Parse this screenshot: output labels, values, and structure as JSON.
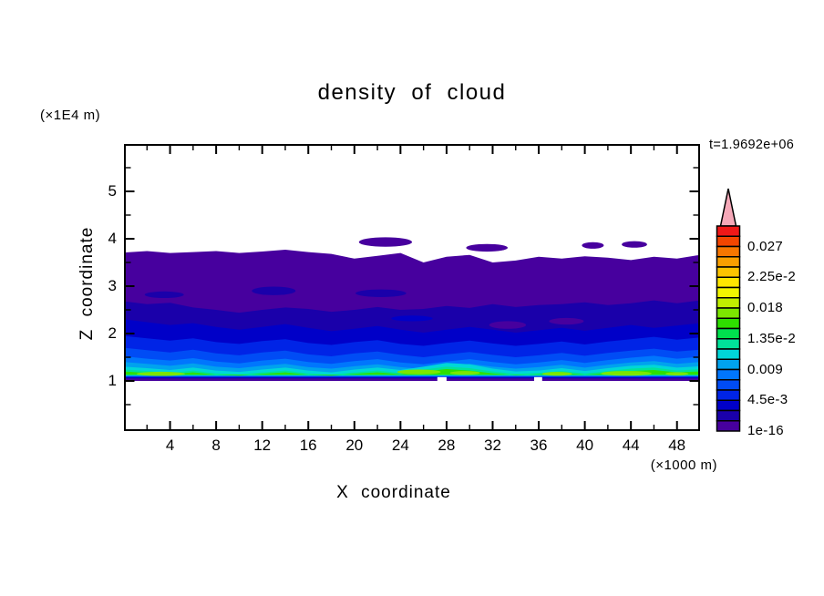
{
  "title": "density of cloud",
  "labels": {
    "time": "t=1.9692e+06",
    "z_unit": "(×1E4 m)",
    "x_unit": "(×1000 m)",
    "x_axis": "X coordinate",
    "z_axis": "Z coordinate"
  },
  "colorbar": {
    "n_segments": 20,
    "value_min": 0,
    "value_max": 0.03,
    "segment_step": 0.0015,
    "overflow_color": "#F5A8B8",
    "frame_color": "#000000",
    "colors_bottom_to_top": [
      "#47009E",
      "#1A00AA",
      "#0000C8",
      "#0024E6",
      "#004CF5",
      "#0076FD",
      "#00A2EE",
      "#00D6D8",
      "#00E29A",
      "#00E14E",
      "#2FDE00",
      "#7DE600",
      "#C0EE00",
      "#F2F500",
      "#FFE600",
      "#FCC300",
      "#F99F00",
      "#F67600",
      "#F34500",
      "#F01818"
    ],
    "labels": [
      {
        "text": "1e-16",
        "boundary_index": 0
      },
      {
        "text": "4.5e-3",
        "boundary_index": 3
      },
      {
        "text": "0.009",
        "boundary_index": 6
      },
      {
        "text": "1.35e-2",
        "boundary_index": 9
      },
      {
        "text": "0.018",
        "boundary_index": 12
      },
      {
        "text": "2.25e-2",
        "boundary_index": 15
      },
      {
        "text": "0.027",
        "boundary_index": 18
      }
    ]
  },
  "chart_data": {
    "type": "heatmap",
    "subtype": "filled-contour",
    "title": "density of cloud",
    "xlabel": "X coordinate",
    "ylabel": "Z coordinate",
    "x_unit": "×1000 m",
    "z_unit": "×1E4 m",
    "time_annotation": "t=1.9692e+06",
    "xlim": [
      0,
      50
    ],
    "zlim": [
      0,
      6.05
    ],
    "x_major_ticks": [
      4,
      8,
      12,
      16,
      20,
      24,
      28,
      32,
      36,
      40,
      44,
      48
    ],
    "x_minor_ticks": [
      2,
      6,
      10,
      14,
      18,
      22,
      26,
      30,
      34,
      38,
      42,
      46
    ],
    "z_major_ticks": [
      1,
      2,
      3,
      4,
      5
    ],
    "z_minor_ticks": [
      0.5,
      1.5,
      2.5,
      3.5,
      4.5,
      5.5
    ],
    "grid": false,
    "legend_position": "right-colorbar",
    "x_step_of_band_points": 2,
    "bands": [
      {
        "name": "band-1e-16",
        "level": 0,
        "bottom": 1.0,
        "z_top": [
          3.71,
          3.74,
          3.7,
          3.72,
          3.74,
          3.7,
          3.73,
          3.77,
          3.72,
          3.68,
          3.58,
          3.64,
          3.7,
          3.5,
          3.62,
          3.66,
          3.5,
          3.54,
          3.62,
          3.58,
          3.63,
          3.6,
          3.55,
          3.62,
          3.58,
          3.66
        ]
      },
      {
        "name": "band-1.5e-3",
        "level": 1,
        "bottom": 1.05,
        "z_top": [
          2.68,
          2.62,
          2.65,
          2.55,
          2.5,
          2.44,
          2.5,
          2.55,
          2.52,
          2.46,
          2.5,
          2.56,
          2.5,
          2.52,
          2.58,
          2.54,
          2.62,
          2.56,
          2.6,
          2.62,
          2.66,
          2.6,
          2.64,
          2.7,
          2.64,
          2.7
        ]
      },
      {
        "name": "band-3e-3",
        "level": 2,
        "bottom": 1.065,
        "z_top": [
          2.3,
          2.24,
          2.18,
          2.22,
          2.14,
          2.08,
          2.14,
          2.2,
          2.12,
          2.05,
          2.1,
          2.16,
          2.08,
          2.02,
          2.08,
          2.14,
          2.08,
          2.02,
          2.07,
          2.12,
          2.06,
          2.12,
          2.18,
          2.12,
          2.17,
          2.22
        ]
      },
      {
        "name": "band-4.5e-3",
        "level": 3,
        "bottom": 1.078,
        "z_top": [
          1.95,
          1.9,
          1.85,
          1.9,
          1.82,
          1.78,
          1.84,
          1.88,
          1.8,
          1.76,
          1.82,
          1.86,
          1.78,
          1.74,
          1.8,
          1.85,
          1.79,
          1.74,
          1.78,
          1.83,
          1.77,
          1.83,
          1.88,
          1.93,
          1.87,
          1.92
        ]
      },
      {
        "name": "band-6e-3",
        "level": 4,
        "bottom": 1.088,
        "z_top": [
          1.7,
          1.65,
          1.6,
          1.66,
          1.58,
          1.54,
          1.6,
          1.64,
          1.56,
          1.52,
          1.58,
          1.62,
          1.55,
          1.5,
          1.56,
          1.61,
          1.55,
          1.5,
          1.54,
          1.59,
          1.53,
          1.59,
          1.64,
          1.68,
          1.62,
          1.66
        ]
      },
      {
        "name": "band-7.5e-3",
        "level": 5,
        "bottom": 1.098,
        "z_top": [
          1.52,
          1.47,
          1.43,
          1.48,
          1.41,
          1.37,
          1.43,
          1.47,
          1.4,
          1.36,
          1.42,
          1.46,
          1.39,
          1.35,
          1.41,
          1.46,
          1.4,
          1.35,
          1.39,
          1.44,
          1.38,
          1.44,
          1.49,
          1.53,
          1.47,
          1.51
        ]
      },
      {
        "name": "band-9e-3",
        "level": 6,
        "bottom": 1.106,
        "z_top": [
          1.4,
          1.36,
          1.32,
          1.37,
          1.3,
          1.27,
          1.32,
          1.36,
          1.29,
          1.26,
          1.31,
          1.35,
          1.29,
          1.25,
          1.31,
          1.36,
          1.3,
          1.26,
          1.29,
          1.34,
          1.28,
          1.34,
          1.39,
          1.42,
          1.36,
          1.4
        ]
      },
      {
        "name": "band-1.05e-2",
        "level": 7,
        "bottom": 1.114,
        "z_top": [
          1.3,
          1.27,
          1.23,
          1.28,
          1.22,
          1.19,
          1.24,
          1.28,
          1.22,
          1.18,
          1.24,
          1.28,
          1.23,
          1.3,
          1.38,
          1.35,
          1.26,
          1.2,
          1.22,
          1.27,
          1.21,
          1.27,
          1.32,
          1.34,
          1.28,
          1.31
        ]
      },
      {
        "name": "band-1.2e-2",
        "level": 8,
        "bottom": 1.122,
        "z_top": [
          1.24,
          1.21,
          1.17,
          1.22,
          1.16,
          1.14,
          1.18,
          1.22,
          1.16,
          1.13,
          1.18,
          1.22,
          1.17,
          1.24,
          1.3,
          1.27,
          1.2,
          1.15,
          1.17,
          1.21,
          1.16,
          1.21,
          1.26,
          1.28,
          1.22,
          1.25
        ]
      },
      {
        "name": "band-1.35e-2",
        "level": 10,
        "bottom": 1.13,
        "z_top": [
          1.2,
          1.17,
          1.14,
          1.18,
          1.13,
          1.11,
          1.15,
          1.18,
          1.13,
          1.11,
          1.15,
          1.18,
          1.14,
          1.2,
          1.25,
          1.22,
          1.16,
          1.12,
          1.14,
          1.17,
          1.13,
          1.17,
          1.21,
          1.23,
          1.18,
          1.2
        ]
      }
    ],
    "islands": [
      {
        "name": "cloud-island",
        "level": 0,
        "ellipse": [
          22.7,
          3.93,
          2.3,
          0.1
        ]
      },
      {
        "name": "cloud-island",
        "level": 0,
        "ellipse": [
          31.5,
          3.81,
          1.8,
          0.08
        ]
      },
      {
        "name": "cloud-island",
        "level": 0,
        "ellipse": [
          40.7,
          3.86,
          0.95,
          0.07
        ]
      },
      {
        "name": "cloud-island",
        "level": 0,
        "ellipse": [
          44.3,
          3.88,
          1.1,
          0.07
        ]
      }
    ],
    "patches": [
      {
        "name": "inner-patch",
        "level": 1,
        "ellipse": [
          3.5,
          2.82,
          1.7,
          0.07
        ]
      },
      {
        "name": "inner-patch",
        "level": 1,
        "ellipse": [
          13.0,
          2.9,
          1.9,
          0.09
        ]
      },
      {
        "name": "inner-patch",
        "level": 1,
        "ellipse": [
          22.3,
          2.85,
          2.2,
          0.08
        ]
      },
      {
        "name": "inner-patch",
        "level": 0,
        "ellipse": [
          33.3,
          2.18,
          1.6,
          0.08
        ]
      },
      {
        "name": "inner-patch",
        "level": 0,
        "ellipse": [
          38.4,
          2.26,
          1.5,
          0.07
        ]
      },
      {
        "name": "inner-patch",
        "level": 2,
        "ellipse": [
          25.0,
          2.32,
          1.8,
          0.06
        ]
      },
      {
        "name": "bright-streak",
        "level": 11,
        "ellipse": [
          3.2,
          1.15,
          2.1,
          0.045
        ]
      },
      {
        "name": "bright-streak",
        "level": 11,
        "ellipse": [
          25.6,
          1.19,
          1.9,
          0.05
        ]
      },
      {
        "name": "bright-streak",
        "level": 11,
        "ellipse": [
          29.6,
          1.17,
          1.3,
          0.04
        ]
      },
      {
        "name": "bright-streak",
        "level": 11,
        "ellipse": [
          37.6,
          1.15,
          1.3,
          0.04
        ]
      },
      {
        "name": "bright-streak",
        "level": 11,
        "ellipse": [
          43.6,
          1.16,
          2.2,
          0.05
        ]
      },
      {
        "name": "bright-streak",
        "level": 11,
        "ellipse": [
          48.0,
          1.15,
          1.0,
          0.035
        ]
      }
    ],
    "base_line_gaps": [
      [
        27.2,
        28.0
      ],
      [
        35.6,
        36.3
      ]
    ],
    "frame_color": "#000000",
    "background_color": "#ffffff"
  }
}
